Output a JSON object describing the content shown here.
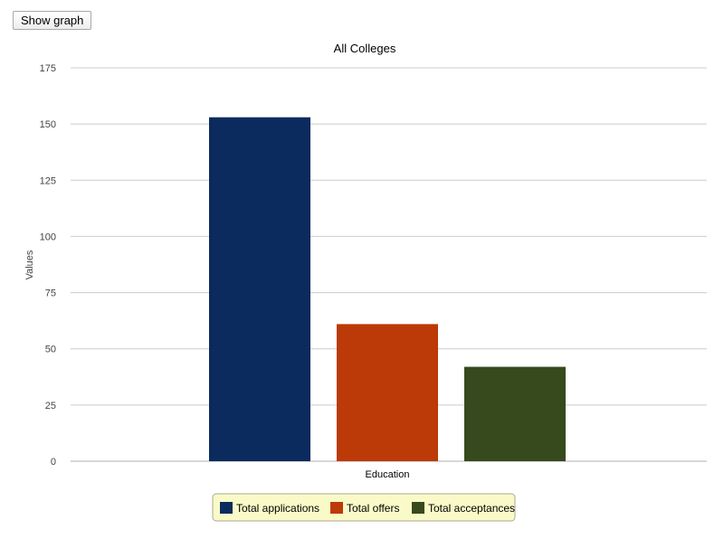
{
  "toolbar": {
    "show_graph_label": "Show graph"
  },
  "chart_data": {
    "type": "bar",
    "title": "All Colleges",
    "categories": [
      "Education"
    ],
    "series": [
      {
        "name": "Total applications",
        "values": [
          153
        ],
        "color": "#0b2b5e"
      },
      {
        "name": "Total offers",
        "values": [
          61
        ],
        "color": "#bc3a07"
      },
      {
        "name": "Total acceptances",
        "values": [
          42
        ],
        "color": "#374a1e"
      }
    ],
    "xlabel": "",
    "ylabel": "Values",
    "ylim": [
      0,
      175
    ],
    "yticks": [
      0,
      25,
      50,
      75,
      100,
      125,
      150,
      175
    ],
    "grid": true,
    "legend_position": "bottom",
    "legend_background": "#fafac8"
  }
}
